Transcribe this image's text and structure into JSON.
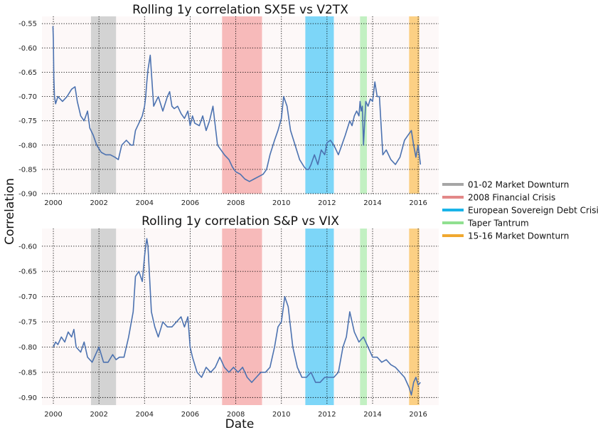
{
  "ylabel": "Correlation",
  "xlabel": "Date",
  "chart_data": [
    {
      "type": "line",
      "title": "Rolling 1y correlation SX5E vs V2TX",
      "xlim": [
        1999.5,
        2016.9
      ],
      "ylim": [
        -0.9,
        -0.535
      ],
      "yticks": [
        "-0.55",
        "-0.60",
        "-0.65",
        "-0.70",
        "-0.75",
        "-0.80",
        "-0.85",
        "-0.90"
      ],
      "xticks": [
        "2000",
        "2002",
        "2004",
        "2006",
        "2008",
        "2010",
        "2012",
        "2014",
        "2016"
      ],
      "grid": true,
      "series": [
        {
          "color": "#4c72b0",
          "x": [
            1999.98,
            2000.0,
            2000.02,
            2000.05,
            2000.1,
            2000.2,
            2000.4,
            2000.6,
            2000.8,
            2000.95,
            2001.05,
            2001.2,
            2001.35,
            2001.5,
            2001.6,
            2001.75,
            2001.9,
            2002.1,
            2002.3,
            2002.5,
            2002.7,
            2002.85,
            2003.0,
            2003.2,
            2003.4,
            2003.5,
            2003.6,
            2003.8,
            2003.9,
            2004.0,
            2004.05,
            2004.1,
            2004.15,
            2004.25,
            2004.4,
            2004.6,
            2004.8,
            2005.0,
            2005.1,
            2005.2,
            2005.3,
            2005.45,
            2005.6,
            2005.75,
            2005.9,
            2006.0,
            2006.1,
            2006.2,
            2006.4,
            2006.55,
            2006.7,
            2006.85,
            2007.0,
            2007.2,
            2007.35,
            2007.5,
            2007.7,
            2007.85,
            2008.0,
            2008.2,
            2008.4,
            2008.6,
            2008.8,
            2009.0,
            2009.2,
            2009.35,
            2009.5,
            2009.7,
            2009.85,
            2010.0,
            2010.1,
            2010.25,
            2010.4,
            2010.6,
            2010.8,
            2011.0,
            2011.1,
            2011.2,
            2011.3,
            2011.45,
            2011.6,
            2011.75,
            2011.9,
            2012.0,
            2012.15,
            2012.3,
            2012.5,
            2012.65,
            2012.8,
            2013.0,
            2013.1,
            2013.2,
            2013.3,
            2013.4,
            2013.45,
            2013.5,
            2013.55,
            2013.6,
            2013.7,
            2013.8,
            2013.9,
            2014.0,
            2014.1,
            2014.2,
            2014.3,
            2014.45,
            2014.6,
            2014.8,
            2015.0,
            2015.2,
            2015.4,
            2015.55,
            2015.7,
            2015.8,
            2015.9,
            2016.0,
            2016.1
          ],
          "y": [
            -0.555,
            -0.58,
            -0.66,
            -0.7,
            -0.715,
            -0.7,
            -0.71,
            -0.7,
            -0.685,
            -0.68,
            -0.71,
            -0.74,
            -0.75,
            -0.73,
            -0.765,
            -0.78,
            -0.8,
            -0.815,
            -0.82,
            -0.82,
            -0.825,
            -0.83,
            -0.8,
            -0.79,
            -0.8,
            -0.8,
            -0.77,
            -0.75,
            -0.74,
            -0.72,
            -0.7,
            -0.67,
            -0.645,
            -0.615,
            -0.72,
            -0.7,
            -0.73,
            -0.7,
            -0.69,
            -0.72,
            -0.725,
            -0.72,
            -0.735,
            -0.745,
            -0.73,
            -0.76,
            -0.74,
            -0.755,
            -0.76,
            -0.74,
            -0.77,
            -0.75,
            -0.72,
            -0.8,
            -0.81,
            -0.82,
            -0.83,
            -0.845,
            -0.855,
            -0.86,
            -0.87,
            -0.875,
            -0.87,
            -0.865,
            -0.86,
            -0.85,
            -0.82,
            -0.79,
            -0.77,
            -0.745,
            -0.7,
            -0.72,
            -0.77,
            -0.8,
            -0.83,
            -0.845,
            -0.85,
            -0.85,
            -0.84,
            -0.82,
            -0.84,
            -0.81,
            -0.82,
            -0.795,
            -0.79,
            -0.8,
            -0.82,
            -0.8,
            -0.78,
            -0.75,
            -0.76,
            -0.74,
            -0.73,
            -0.74,
            -0.71,
            -0.73,
            -0.72,
            -0.8,
            -0.71,
            -0.72,
            -0.705,
            -0.71,
            -0.67,
            -0.7,
            -0.7,
            -0.82,
            -0.81,
            -0.83,
            -0.84,
            -0.825,
            -0.79,
            -0.78,
            -0.77,
            -0.8,
            -0.825,
            -0.8,
            -0.84
          ]
        }
      ]
    },
    {
      "type": "line",
      "title": "Rolling 1y correlation S&P vs VIX",
      "xlim": [
        1999.5,
        2016.9
      ],
      "ylim": [
        -0.915,
        -0.565
      ],
      "yticks": [
        "-0.60",
        "-0.65",
        "-0.70",
        "-0.75",
        "-0.80",
        "-0.85",
        "-0.90"
      ],
      "xticks": [
        "2000",
        "2002",
        "2004",
        "2006",
        "2008",
        "2010",
        "2012",
        "2014",
        "2016"
      ],
      "grid": true,
      "series": [
        {
          "color": "#4c72b0",
          "x": [
            2000.0,
            2000.1,
            2000.2,
            2000.35,
            2000.5,
            2000.65,
            2000.8,
            2000.9,
            2001.0,
            2001.2,
            2001.35,
            2001.5,
            2001.7,
            2001.85,
            2002.0,
            2002.2,
            2002.4,
            2002.6,
            2002.75,
            2002.9,
            2003.1,
            2003.3,
            2003.5,
            2003.6,
            2003.75,
            2003.9,
            2004.0,
            2004.05,
            2004.1,
            2004.15,
            2004.3,
            2004.45,
            2004.6,
            2004.8,
            2005.0,
            2005.2,
            2005.4,
            2005.6,
            2005.75,
            2005.9,
            2006.0,
            2006.1,
            2006.3,
            2006.5,
            2006.7,
            2006.9,
            2007.1,
            2007.3,
            2007.5,
            2007.7,
            2007.9,
            2008.1,
            2008.3,
            2008.5,
            2008.7,
            2008.9,
            2009.1,
            2009.3,
            2009.5,
            2009.7,
            2009.85,
            2010.0,
            2010.15,
            2010.3,
            2010.5,
            2010.7,
            2010.9,
            2011.1,
            2011.3,
            2011.5,
            2011.7,
            2011.9,
            2012.1,
            2012.3,
            2012.5,
            2012.7,
            2012.85,
            2013.0,
            2013.1,
            2013.2,
            2013.4,
            2013.6,
            2013.8,
            2014.0,
            2014.2,
            2014.4,
            2014.6,
            2014.8,
            2015.0,
            2015.2,
            2015.4,
            2015.6,
            2015.7,
            2015.8,
            2015.9,
            2016.0,
            2016.1
          ],
          "y": [
            -0.8,
            -0.79,
            -0.795,
            -0.78,
            -0.79,
            -0.77,
            -0.78,
            -0.765,
            -0.8,
            -0.81,
            -0.79,
            -0.82,
            -0.83,
            -0.815,
            -0.8,
            -0.83,
            -0.83,
            -0.815,
            -0.825,
            -0.82,
            -0.82,
            -0.78,
            -0.73,
            -0.66,
            -0.65,
            -0.67,
            -0.62,
            -0.6,
            -0.585,
            -0.6,
            -0.73,
            -0.76,
            -0.78,
            -0.75,
            -0.76,
            -0.76,
            -0.75,
            -0.74,
            -0.76,
            -0.74,
            -0.8,
            -0.82,
            -0.85,
            -0.86,
            -0.84,
            -0.85,
            -0.84,
            -0.82,
            -0.84,
            -0.85,
            -0.84,
            -0.85,
            -0.84,
            -0.86,
            -0.87,
            -0.86,
            -0.85,
            -0.85,
            -0.84,
            -0.8,
            -0.76,
            -0.75,
            -0.7,
            -0.72,
            -0.8,
            -0.84,
            -0.86,
            -0.86,
            -0.85,
            -0.87,
            -0.87,
            -0.86,
            -0.86,
            -0.86,
            -0.85,
            -0.8,
            -0.78,
            -0.73,
            -0.75,
            -0.77,
            -0.79,
            -0.78,
            -0.8,
            -0.82,
            -0.82,
            -0.83,
            -0.825,
            -0.835,
            -0.84,
            -0.85,
            -0.86,
            -0.88,
            -0.895,
            -0.87,
            -0.86,
            -0.875,
            -0.87
          ]
        }
      ]
    }
  ],
  "highlights": [
    {
      "label": "01-02 Market Downturn",
      "start": 2001.65,
      "end": 2002.75,
      "color": "#a6a6a6",
      "fill": "#d3d3d3"
    },
    {
      "label": "2008 Financial Crisis",
      "start": 2007.4,
      "end": 2009.15,
      "color": "#e38888",
      "fill": "#f7baba"
    },
    {
      "label": "European Sovereign Debt Crisis",
      "start": 2011.05,
      "end": 2012.3,
      "color": "#1ab4e8",
      "fill": "#7dd6f8"
    },
    {
      "label": "Taper Tantrum",
      "start": 2013.45,
      "end": 2013.75,
      "color": "#90e090",
      "fill": "#c2f0c2"
    },
    {
      "label": "15-16 Market Downturn",
      "start": 2015.6,
      "end": 2016.05,
      "color": "#f0a830",
      "fill": "#fcd084"
    }
  ]
}
